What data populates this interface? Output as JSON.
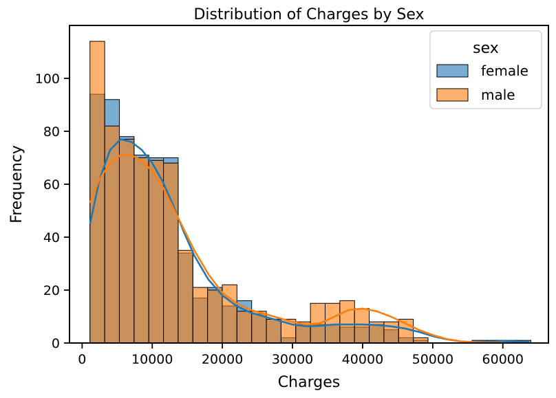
{
  "chart_data": {
    "type": "histogram",
    "title": "Distribution of Charges by Sex",
    "xlabel": "Charges",
    "ylabel": "Frequency",
    "xlim": [
      -1800,
      66500
    ],
    "ylim": [
      0,
      120
    ],
    "xticks": [
      0,
      10000,
      20000,
      30000,
      40000,
      50000,
      60000
    ],
    "xtick_labels": [
      "0",
      "10000",
      "20000",
      "30000",
      "40000",
      "50000",
      "60000"
    ],
    "yticks": [
      0,
      20,
      40,
      60,
      80,
      100
    ],
    "ytick_labels": [
      "0",
      "20",
      "40",
      "60",
      "80",
      "100"
    ],
    "bin_start": 1120,
    "bin_width": 2096,
    "legend": {
      "title": "sex",
      "position": "top-right",
      "entries": [
        "female",
        "male"
      ]
    },
    "series": [
      {
        "name": "female",
        "color": "#1f77b4",
        "counts": [
          94,
          92,
          78,
          71,
          70,
          70,
          34,
          17,
          21,
          14,
          16,
          11,
          9,
          2,
          7,
          7,
          7,
          6,
          6,
          7,
          5,
          2,
          1,
          0,
          0,
          0,
          1,
          1,
          1,
          1
        ],
        "kde_x": [
          1120,
          2500,
          4000,
          5500,
          7000,
          8500,
          10000,
          11500,
          13000,
          14500,
          16000,
          18000,
          20000,
          22000,
          24000,
          26000,
          28000,
          30000,
          32000,
          34000,
          36000,
          38000,
          40000,
          42000,
          44000,
          46000,
          48000,
          50000,
          52000,
          54000,
          56000,
          58000,
          60000,
          62000,
          63800
        ],
        "kde_y": [
          45,
          62,
          73,
          77,
          76,
          73,
          68,
          61,
          52,
          42,
          33,
          24,
          18,
          14,
          11.5,
          10,
          8.5,
          7,
          6.3,
          6.5,
          7,
          7,
          7,
          6.8,
          6.3,
          5.5,
          4.2,
          2.6,
          1.4,
          0.6,
          0.3,
          0.5,
          0.7,
          0.6,
          0.4
        ]
      },
      {
        "name": "male",
        "color": "#ff7f0e",
        "counts": [
          114,
          82,
          77,
          70,
          69,
          68,
          35,
          21,
          20,
          22,
          12,
          12,
          9,
          9,
          8,
          15,
          15,
          16,
          13,
          8,
          8,
          9,
          2,
          0,
          0,
          0,
          0,
          0,
          0,
          0
        ],
        "kde_x": [
          1120,
          2500,
          4000,
          5500,
          7000,
          8500,
          10000,
          11500,
          13000,
          14500,
          16000,
          18000,
          20000,
          22000,
          24000,
          26000,
          28000,
          30000,
          32000,
          34000,
          36000,
          38000,
          40000,
          42000,
          44000,
          46000,
          48000,
          50000,
          52000,
          54000,
          56000,
          58000,
          60000
        ],
        "kde_y": [
          53,
          62,
          68,
          71,
          71,
          69,
          65,
          59,
          51,
          43,
          35,
          26,
          19,
          15,
          12.5,
          11,
          9.5,
          8,
          7,
          7.5,
          10,
          12.5,
          13,
          12,
          10,
          7.5,
          5,
          3,
          1.5,
          0.6,
          0.2,
          0.1,
          0.1
        ]
      }
    ]
  }
}
